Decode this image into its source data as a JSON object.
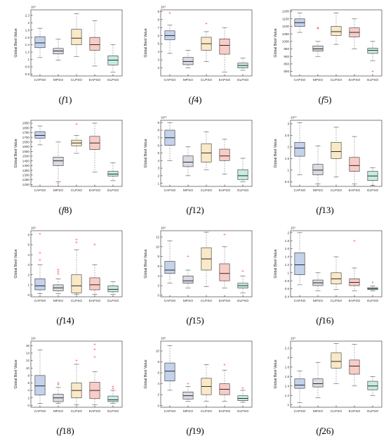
{
  "style": {
    "colors": [
      "#6f8fd0",
      "#a3a6ba",
      "#f2c773",
      "#f07f73",
      "#70d0b5"
    ],
    "fill_opacity": 0.4,
    "median_color": "#000000",
    "outlier_color": "#ff3b3b",
    "whisker_color": "#888888"
  },
  "chart_data": [
    {
      "type": "box",
      "caption": "(f1)",
      "ylabel": "Global Best Value",
      "exponent_label": "10⁴",
      "ylim": [
        0.55,
        2.35
      ],
      "yticks": [
        0.6,
        0.8,
        1,
        1.2,
        1.4,
        1.6,
        1.8,
        2,
        2.2
      ],
      "categories": [
        "CAPSO",
        "MPSO",
        "CLPSO",
        "EAPSO",
        "GLPSO"
      ],
      "boxes": [
        {
          "min": 1.05,
          "q1": 1.32,
          "median": 1.45,
          "q3": 1.62,
          "max": 1.85,
          "outliers": []
        },
        {
          "min": 0.98,
          "q1": 1.15,
          "median": 1.23,
          "q3": 1.3,
          "max": 1.55,
          "outliers": []
        },
        {
          "min": 1.08,
          "q1": 1.4,
          "median": 1.58,
          "q3": 1.82,
          "max": 2.25,
          "outliers": []
        },
        {
          "min": 0.82,
          "q1": 1.25,
          "median": 1.4,
          "q3": 1.6,
          "max": 2.05,
          "outliers": []
        },
        {
          "min": 0.65,
          "q1": 0.85,
          "median": 0.98,
          "q3": 1.1,
          "max": 1.4,
          "outliers": []
        }
      ]
    },
    {
      "type": "box",
      "caption": "(f4)",
      "ylabel": "Global Best Value",
      "exponent_label": "10⁴",
      "ylim": [
        1,
        9.2
      ],
      "yticks": [
        2,
        3,
        4,
        5,
        6,
        7,
        8,
        9
      ],
      "categories": [
        "CAPSO",
        "MPSO",
        "CLPSO",
        "EAPSO",
        "GLPSO"
      ],
      "boxes": [
        {
          "min": 3.8,
          "q1": 5.5,
          "median": 6.0,
          "q3": 6.6,
          "max": 7.3,
          "outliers": [
            8.8
          ]
        },
        {
          "min": 2.0,
          "q1": 2.4,
          "median": 2.8,
          "q3": 3.3,
          "max": 4.2,
          "outliers": []
        },
        {
          "min": 2.8,
          "q1": 4.2,
          "median": 5.0,
          "q3": 5.8,
          "max": 6.5,
          "outliers": [
            7.5
          ]
        },
        {
          "min": 1.5,
          "q1": 3.7,
          "median": 4.8,
          "q3": 5.6,
          "max": 7.0,
          "outliers": []
        },
        {
          "min": 1.7,
          "q1": 2.0,
          "median": 2.3,
          "q3": 2.6,
          "max": 3.2,
          "outliers": []
        }
      ]
    },
    {
      "type": "box",
      "caption": "(f5)",
      "ylabel": "Global Best Value",
      "exponent_label": "",
      "ylim": [
        770,
        1210
      ],
      "yticks": [
        800,
        850,
        900,
        950,
        1000,
        1050,
        1100,
        1150,
        1200
      ],
      "categories": [
        "CAPSO",
        "MPSO",
        "CLPSO",
        "EAPSO",
        "GLPSO"
      ],
      "boxes": [
        {
          "min": 1060,
          "q1": 1100,
          "median": 1125,
          "q3": 1150,
          "max": 1190,
          "outliers": []
        },
        {
          "min": 900,
          "q1": 935,
          "median": 950,
          "q3": 970,
          "max": 1000,
          "outliers": [
            1085,
            1090
          ]
        },
        {
          "min": 980,
          "q1": 1040,
          "median": 1065,
          "q3": 1100,
          "max": 1190,
          "outliers": []
        },
        {
          "min": 950,
          "q1": 1030,
          "median": 1060,
          "q3": 1090,
          "max": 1150,
          "outliers": []
        },
        {
          "min": 870,
          "q1": 920,
          "median": 940,
          "q3": 955,
          "max": 1000,
          "outliers": [
            800
          ]
        }
      ]
    },
    {
      "type": "box",
      "caption": "(f8)",
      "ylabel": "Global Best Value",
      "exponent_label": "",
      "ylim": [
        1180,
        1880
      ],
      "yticks": [
        1200,
        1250,
        1300,
        1350,
        1400,
        1450,
        1500,
        1550,
        1600,
        1650,
        1700,
        1750,
        1800,
        1850
      ],
      "categories": [
        "CAPSO",
        "MPSO",
        "CLPSO",
        "EAPSO",
        "GLPSO"
      ],
      "boxes": [
        {
          "min": 1620,
          "q1": 1690,
          "median": 1720,
          "q3": 1760,
          "max": 1820,
          "outliers": []
        },
        {
          "min": 1230,
          "q1": 1400,
          "median": 1450,
          "q3": 1490,
          "max": 1650,
          "outliers": [
            1210
          ]
        },
        {
          "min": 1530,
          "q1": 1610,
          "median": 1640,
          "q3": 1670,
          "max": 1720,
          "outliers": [
            1840
          ]
        },
        {
          "min": 1330,
          "q1": 1570,
          "median": 1640,
          "q3": 1710,
          "max": 1850,
          "outliers": []
        },
        {
          "min": 1240,
          "q1": 1290,
          "median": 1310,
          "q3": 1340,
          "max": 1430,
          "outliers": []
        }
      ]
    },
    {
      "type": "box",
      "caption": "(f12)",
      "ylabel": "Global Best Value",
      "exponent_label": "10¹⁰",
      "ylim": [
        0.6,
        9.3
      ],
      "yticks": [
        1,
        2,
        3,
        4,
        5,
        6,
        7,
        8,
        9
      ],
      "categories": [
        "CAPSO",
        "MPSO",
        "CLPSO",
        "EAPSO",
        "GLPSO"
      ],
      "boxes": [
        {
          "min": 4.0,
          "q1": 6.0,
          "median": 7.0,
          "q3": 8.0,
          "max": 9.0,
          "outliers": []
        },
        {
          "min": 2.0,
          "q1": 3.2,
          "median": 3.8,
          "q3": 4.6,
          "max": 5.8,
          "outliers": []
        },
        {
          "min": 2.8,
          "q1": 3.8,
          "median": 5.0,
          "q3": 6.2,
          "max": 7.8,
          "outliers": []
        },
        {
          "min": 2.2,
          "q1": 4.0,
          "median": 4.6,
          "q3": 5.5,
          "max": 6.8,
          "outliers": []
        },
        {
          "min": 1.2,
          "q1": 1.5,
          "median": 2.0,
          "q3": 2.8,
          "max": 4.3,
          "outliers": []
        }
      ]
    },
    {
      "type": "box",
      "caption": "(f13)",
      "ylabel": "Global Best Value",
      "exponent_label": "10¹⁰",
      "ylim": [
        0.3,
        3.15
      ],
      "yticks": [
        0.5,
        1,
        1.5,
        2,
        2.5,
        3
      ],
      "categories": [
        "CAPSO",
        "MPSO",
        "CLPSO",
        "EAPSO",
        "GLPSO"
      ],
      "boxes": [
        {
          "min": 0.8,
          "q1": 1.6,
          "median": 1.95,
          "q3": 2.2,
          "max": 3.05,
          "outliers": []
        },
        {
          "min": 0.4,
          "q1": 0.8,
          "median": 1.0,
          "q3": 1.25,
          "max": 2.05,
          "outliers": []
        },
        {
          "min": 0.7,
          "q1": 1.5,
          "median": 1.8,
          "q3": 2.2,
          "max": 2.85,
          "outliers": []
        },
        {
          "min": 0.4,
          "q1": 0.95,
          "median": 1.2,
          "q3": 1.55,
          "max": 2.45,
          "outliers": []
        },
        {
          "min": 0.35,
          "q1": 0.55,
          "median": 0.75,
          "q3": 0.95,
          "max": 1.1,
          "outliers": []
        }
      ]
    },
    {
      "type": "box",
      "caption": "(f14)",
      "ylabel": "Global Best Value",
      "exponent_label": "10⁹",
      "ylim": [
        -0.2,
        6.4
      ],
      "yticks": [
        0,
        1,
        2,
        3,
        4,
        5,
        6
      ],
      "categories": [
        "CAPSO",
        "MPSO",
        "CLPSO",
        "EAPSO",
        "GLPSO"
      ],
      "boxes": [
        {
          "min": 0.1,
          "q1": 0.5,
          "median": 0.9,
          "q3": 1.6,
          "max": 3.0,
          "outliers": [
            3.5,
            4.2,
            6.1
          ]
        },
        {
          "min": 0.1,
          "q1": 0.4,
          "median": 0.7,
          "q3": 1.0,
          "max": 1.6,
          "outliers": [
            2.1,
            2.3,
            2.5
          ]
        },
        {
          "min": 0.05,
          "q1": 0.2,
          "median": 0.9,
          "q3": 2.0,
          "max": 4.5,
          "outliers": [
            5.2,
            5.5
          ]
        },
        {
          "min": 0.05,
          "q1": 0.5,
          "median": 1.0,
          "q3": 1.7,
          "max": 3.0,
          "outliers": [
            5.0
          ]
        },
        {
          "min": 0.05,
          "q1": 0.3,
          "median": 0.55,
          "q3": 0.9,
          "max": 1.3,
          "outliers": []
        }
      ]
    },
    {
      "type": "box",
      "caption": "(f15)",
      "ylabel": "Global Best Value",
      "exponent_label": "10⁸",
      "ylim": [
        -0.3,
        13.3
      ],
      "yticks": [
        0,
        2,
        4,
        6,
        8,
        10,
        12
      ],
      "categories": [
        "CAPSO",
        "MPSO",
        "CLPSO",
        "EAPSO",
        "GLPSO"
      ],
      "boxes": [
        {
          "min": 2.5,
          "q1": 4.5,
          "median": 5.2,
          "q3": 7.0,
          "max": 11.2,
          "outliers": []
        },
        {
          "min": 1.5,
          "q1": 2.5,
          "median": 3.0,
          "q3": 4.0,
          "max": 5.2,
          "outliers": [
            8.0
          ]
        },
        {
          "min": 1.8,
          "q1": 5.2,
          "median": 7.5,
          "q3": 9.8,
          "max": 13.0,
          "outliers": []
        },
        {
          "min": 1.5,
          "q1": 3.0,
          "median": 4.5,
          "q3": 6.5,
          "max": 10.0,
          "outliers": [
            12.5
          ]
        },
        {
          "min": 0.5,
          "q1": 1.5,
          "median": 2.0,
          "q3": 2.5,
          "max": 4.0,
          "outliers": [
            5.0
          ]
        }
      ]
    },
    {
      "type": "box",
      "caption": "(f16)",
      "ylabel": "Global Best Value",
      "exponent_label": "10⁵",
      "ylim": [
        0.4,
        2.05
      ],
      "yticks": [
        0.4,
        0.6,
        0.8,
        1,
        1.2,
        1.4,
        1.6,
        1.8,
        2
      ],
      "categories": [
        "CAPSO",
        "MPSO",
        "CLPSO",
        "EAPSO",
        "GLPSO"
      ],
      "boxes": [
        {
          "min": 0.7,
          "q1": 0.95,
          "median": 1.2,
          "q3": 1.5,
          "max": 2.0,
          "outliers": []
        },
        {
          "min": 0.55,
          "q1": 0.68,
          "median": 0.75,
          "q3": 0.82,
          "max": 1.0,
          "outliers": []
        },
        {
          "min": 0.58,
          "q1": 0.72,
          "median": 0.85,
          "q3": 1.0,
          "max": 1.4,
          "outliers": []
        },
        {
          "min": 0.55,
          "q1": 0.68,
          "median": 0.76,
          "q3": 0.85,
          "max": 1.12,
          "outliers": [
            1.8
          ]
        },
        {
          "min": 0.55,
          "q1": 0.58,
          "median": 0.6,
          "q3": 0.63,
          "max": 0.67,
          "outliers": [
            0.76
          ]
        }
      ]
    },
    {
      "type": "box",
      "caption": "(f18)",
      "ylabel": "Global Best Value",
      "exponent_label": "10⁶",
      "ylim": [
        -0.5,
        17.2
      ],
      "yticks": [
        0,
        2,
        4,
        6,
        8,
        10,
        12,
        14,
        16
      ],
      "categories": [
        "CAPSO",
        "MPSO",
        "CLPSO",
        "EAPSO",
        "GLPSO"
      ],
      "boxes": [
        {
          "min": 0.5,
          "q1": 2.8,
          "median": 5.2,
          "q3": 8.0,
          "max": 14.8,
          "outliers": []
        },
        {
          "min": 0.5,
          "q1": 1.0,
          "median": 2.0,
          "q3": 3.0,
          "max": 4.8,
          "outliers": [
            5.5,
            6.0
          ]
        },
        {
          "min": 0.2,
          "q1": 2.0,
          "median": 4.0,
          "q3": 6.0,
          "max": 11.0,
          "outliers": [
            12.0
          ]
        },
        {
          "min": 0.2,
          "q1": 1.8,
          "median": 4.0,
          "q3": 6.2,
          "max": 9.0,
          "outliers": [
            13.0,
            15.0,
            16.3
          ]
        },
        {
          "min": 0.5,
          "q1": 1.0,
          "median": 1.5,
          "q3": 2.5,
          "max": 4.0,
          "outliers": [
            4.5,
            5.0
          ]
        }
      ]
    },
    {
      "type": "box",
      "caption": "(f19)",
      "ylabel": "Global Best Value",
      "exponent_label": "10⁸",
      "ylim": [
        -0.3,
        11.8
      ],
      "yticks": [
        0,
        2,
        4,
        6,
        8,
        10
      ],
      "categories": [
        "CAPSO",
        "MPSO",
        "CLPSO",
        "EAPSO",
        "GLPSO"
      ],
      "boxes": [
        {
          "min": 2.8,
          "q1": 4.5,
          "median": 6.3,
          "q3": 7.8,
          "max": 11.0,
          "outliers": []
        },
        {
          "min": 0.8,
          "q1": 1.2,
          "median": 1.8,
          "q3": 2.5,
          "max": 3.5,
          "outliers": [
            4.0
          ]
        },
        {
          "min": 0.8,
          "q1": 2.0,
          "median": 3.5,
          "q3": 5.0,
          "max": 7.5,
          "outliers": []
        },
        {
          "min": 0.8,
          "q1": 2.0,
          "median": 3.0,
          "q3": 4.0,
          "max": 6.5,
          "outliers": [
            7.5
          ]
        },
        {
          "min": 0.6,
          "q1": 0.9,
          "median": 1.3,
          "q3": 1.8,
          "max": 2.8,
          "outliers": [
            3.2
          ]
        }
      ]
    },
    {
      "type": "box",
      "caption": "(f26)",
      "ylabel": "Global Best Value",
      "exponent_label": "10⁴",
      "ylim": [
        0.95,
        2.35
      ],
      "yticks": [
        1,
        1.2,
        1.4,
        1.6,
        1.8,
        2,
        2.2
      ],
      "categories": [
        "CAPSO",
        "MPSO",
        "CLPSO",
        "EAPSO",
        "GLPSO"
      ],
      "boxes": [
        {
          "min": 1.05,
          "q1": 1.35,
          "median": 1.42,
          "q3": 1.55,
          "max": 1.72,
          "outliers": []
        },
        {
          "min": 1.15,
          "q1": 1.38,
          "median": 1.45,
          "q3": 1.55,
          "max": 1.9,
          "outliers": []
        },
        {
          "min": 1.45,
          "q1": 1.78,
          "median": 1.92,
          "q3": 2.1,
          "max": 2.3,
          "outliers": []
        },
        {
          "min": 1.4,
          "q1": 1.65,
          "median": 1.82,
          "q3": 1.95,
          "max": 2.28,
          "outliers": []
        },
        {
          "min": 1.2,
          "q1": 1.32,
          "median": 1.4,
          "q3": 1.5,
          "max": 1.6,
          "outliers": []
        }
      ]
    }
  ]
}
